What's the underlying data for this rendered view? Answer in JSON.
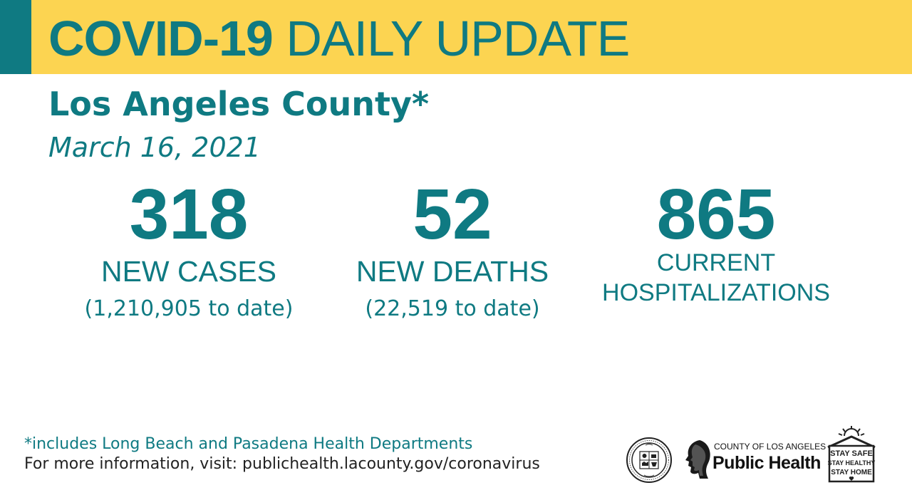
{
  "header": {
    "title_strong": "COVID-19",
    "title_light": "DAILY UPDATE",
    "bg_color": "#fcd451",
    "accent_color": "#0f7a82"
  },
  "region": "Los Angeles County*",
  "date": "March 16, 2021",
  "stats": {
    "new_cases": {
      "value": "318",
      "label": "NEW CASES",
      "to_date": "(1,210,905 to date)"
    },
    "new_deaths": {
      "value": "52",
      "label": "NEW DEATHS",
      "to_date": "(22,519 to date)"
    },
    "hospitalizations": {
      "value": "865",
      "label_line1": "CURRENT",
      "label_line2": "HOSPITALIZATIONS"
    }
  },
  "footer": {
    "footnote": "*includes Long Beach and Pasadena Health Departments",
    "more_info": "For more information, visit: publichealth.lacounty.gov/coronavirus"
  },
  "logos": {
    "seal_icon": "county-seal-icon",
    "public_health": {
      "county_text": "COUNTY OF LOS ANGELES",
      "name": "Public Health"
    },
    "stay_home": {
      "line1": "STAY SAFE",
      "line2": "STAY HEALTHY",
      "line3": "STAY HOME"
    }
  }
}
